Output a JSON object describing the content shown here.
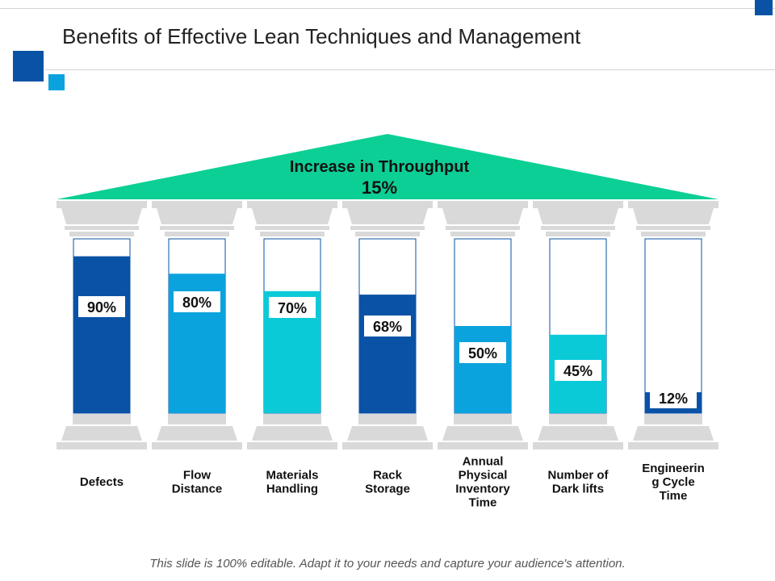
{
  "title": "Benefits of Effective Lean Techniques and Management",
  "footer": "This slide is 100% editable. Adapt it to your needs and capture your audience's attention.",
  "colors": {
    "roof": "#0ccf96",
    "column_base": "#d9d9d9",
    "bar_border": "#0a52a6",
    "accent_dark": "#0a52a6",
    "accent_mid": "#0aa3dd"
  },
  "chart_data": {
    "type": "bar",
    "title": "Increase in Throughput",
    "title_value": "15%",
    "categories": [
      "Defects",
      "Flow Distance",
      "Materials Handling",
      "Rack Storage",
      "Annual Physical Inventory Time",
      "Number of Dark lifts",
      "Engineering Cycle Time"
    ],
    "category_lines": [
      [
        "Defects"
      ],
      [
        "Flow",
        "Distance"
      ],
      [
        "Materials",
        "Handling"
      ],
      [
        "Rack",
        "Storage"
      ],
      [
        "Annual",
        "Physical",
        "Inventory",
        "Time"
      ],
      [
        "Number of",
        "Dark lifts"
      ],
      [
        "Engineerin",
        "g Cycle",
        "Time"
      ]
    ],
    "values": [
      90,
      80,
      70,
      68,
      50,
      45,
      12
    ],
    "value_labels": [
      "90%",
      "80%",
      "70%",
      "68%",
      "50%",
      "45%",
      "12%"
    ],
    "bar_colors": [
      "#0a52a6",
      "#0aa3dd",
      "#0bcad8",
      "#0a52a6",
      "#0aa3dd",
      "#0bcad8",
      "#0a52a6"
    ],
    "ylim": [
      0,
      100
    ],
    "unit": "%"
  }
}
